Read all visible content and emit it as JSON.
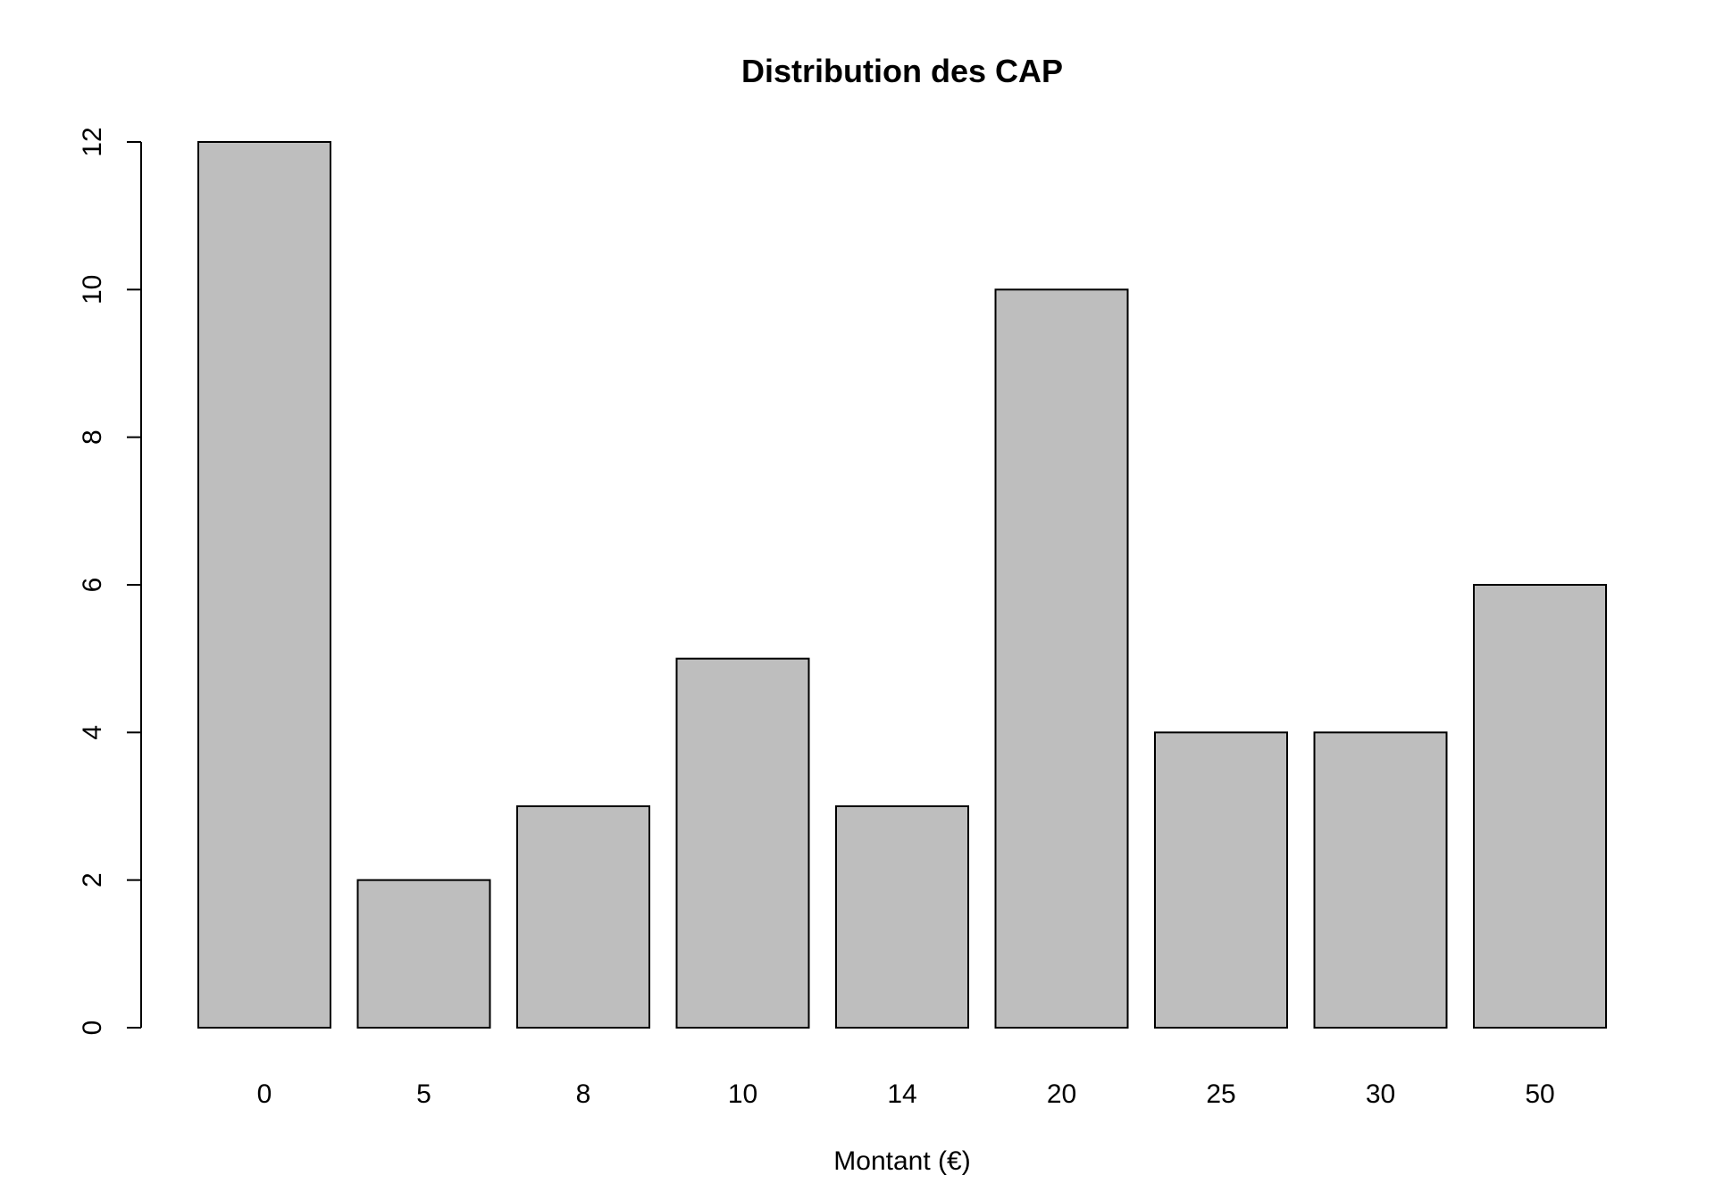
{
  "chart_data": {
    "type": "bar",
    "title": "Distribution des CAP",
    "xlabel": "Montant (€)",
    "ylabel": "",
    "categories": [
      "0",
      "5",
      "8",
      "10",
      "14",
      "20",
      "25",
      "30",
      "50"
    ],
    "values": [
      12,
      2,
      3,
      5,
      3,
      10,
      4,
      4,
      6
    ],
    "ylim": [
      0,
      12
    ],
    "yticks": [
      "0",
      "2",
      "4",
      "6",
      "8",
      "10",
      "12"
    ],
    "grid": false,
    "colors": {
      "bar_fill": "#bebebe",
      "bar_stroke": "#000000"
    }
  }
}
